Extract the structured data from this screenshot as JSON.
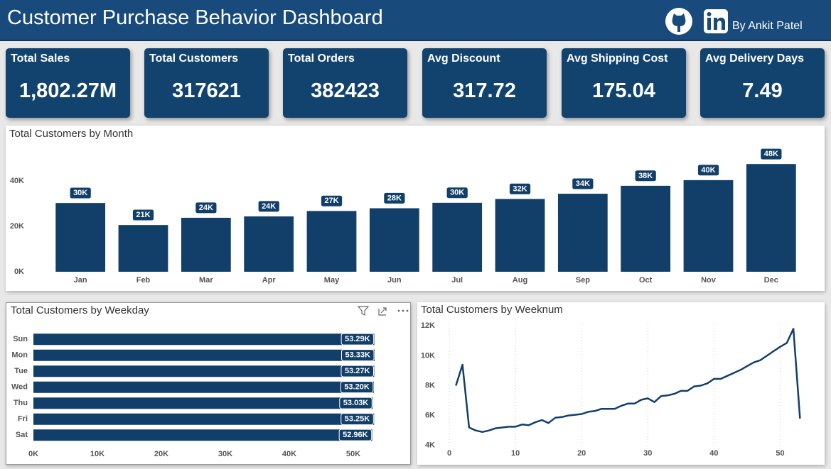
{
  "header": {
    "title": "Customer Purchase Behavior Dashboard",
    "author": "By Ankit Patel"
  },
  "kpis": [
    {
      "label": "Total Sales",
      "value": "1,802.27M"
    },
    {
      "label": "Total Customers",
      "value": "317621"
    },
    {
      "label": "Total Orders",
      "value": "382423"
    },
    {
      "label": "Avg Discount",
      "value": "317.72"
    },
    {
      "label": "Avg Shipping Cost",
      "value": "175.04"
    },
    {
      "label": "Avg Delivery Days",
      "value": "7.49"
    }
  ],
  "chart_data": [
    {
      "type": "bar",
      "title": "Total Customers by Month",
      "categories": [
        "Jan",
        "Feb",
        "Mar",
        "Apr",
        "May",
        "Jun",
        "Jul",
        "Aug",
        "Sep",
        "Oct",
        "Nov",
        "Dec"
      ],
      "values": [
        30300,
        20600,
        23800,
        24400,
        26800,
        28000,
        30400,
        32100,
        34400,
        37900,
        40400,
        47500
      ],
      "value_labels": [
        "30K",
        "21K",
        "24K",
        "24K",
        "27K",
        "28K",
        "30K",
        "32K",
        "34K",
        "38K",
        "40K",
        "48K"
      ],
      "color": "#123f6a",
      "ylim": [
        0,
        56000
      ],
      "yticks": [
        {
          "value": 0,
          "label": "0K"
        },
        {
          "value": 20000,
          "label": "20K"
        },
        {
          "value": 40000,
          "label": "40K"
        }
      ],
      "grid": false
    },
    {
      "type": "hbar",
      "title": "Total Customers by Weekday",
      "categories": [
        "Sun",
        "Mon",
        "Tue",
        "Wed",
        "Thu",
        "Fri",
        "Sat"
      ],
      "values": [
        53290,
        53330,
        53270,
        53200,
        53030,
        53250,
        52960
      ],
      "value_labels": [
        "53.29K",
        "53.33K",
        "53.27K",
        "53.20K",
        "53.03K",
        "53.25K",
        "52.96K"
      ],
      "color": "#123f6a",
      "xlim": [
        0,
        58000
      ],
      "xticks": [
        {
          "value": 0,
          "label": "0K"
        },
        {
          "value": 10000,
          "label": "10K"
        },
        {
          "value": 20000,
          "label": "20K"
        },
        {
          "value": 30000,
          "label": "30K"
        },
        {
          "value": 40000,
          "label": "40K"
        },
        {
          "value": 50000,
          "label": "50K"
        }
      ]
    },
    {
      "type": "line",
      "title": "Total Customers by Weeknum",
      "x": [
        1,
        2,
        3,
        4,
        5,
        6,
        7,
        8,
        9,
        10,
        11,
        12,
        13,
        14,
        15,
        16,
        17,
        18,
        19,
        20,
        21,
        22,
        23,
        24,
        25,
        26,
        27,
        28,
        29,
        30,
        31,
        32,
        33,
        34,
        35,
        36,
        37,
        38,
        39,
        40,
        41,
        42,
        43,
        44,
        45,
        46,
        47,
        48,
        49,
        50,
        51,
        52,
        53
      ],
      "values": [
        8000,
        9400,
        5200,
        5000,
        4900,
        5000,
        5150,
        5200,
        5250,
        5250,
        5400,
        5350,
        5550,
        5700,
        5500,
        5850,
        5900,
        6000,
        6050,
        6100,
        6250,
        6300,
        6450,
        6450,
        6450,
        6650,
        6800,
        6800,
        7050,
        7150,
        6900,
        7300,
        7350,
        7450,
        7650,
        7650,
        7950,
        8000,
        8150,
        8450,
        8450,
        8650,
        8850,
        9050,
        9300,
        9550,
        9700,
        10000,
        10300,
        10600,
        10850,
        11800,
        5800
      ],
      "color": "#123f6a",
      "xlim": [
        -1,
        55
      ],
      "ylim": [
        3800,
        12200
      ],
      "xticks": [
        0,
        10,
        20,
        30,
        40,
        50
      ],
      "yticks": [
        {
          "value": 4000,
          "label": "4K"
        },
        {
          "value": 6000,
          "label": "6K"
        },
        {
          "value": 8000,
          "label": "8K"
        },
        {
          "value": 10000,
          "label": "10K"
        },
        {
          "value": 12000,
          "label": "12K"
        }
      ],
      "grid": true
    }
  ]
}
